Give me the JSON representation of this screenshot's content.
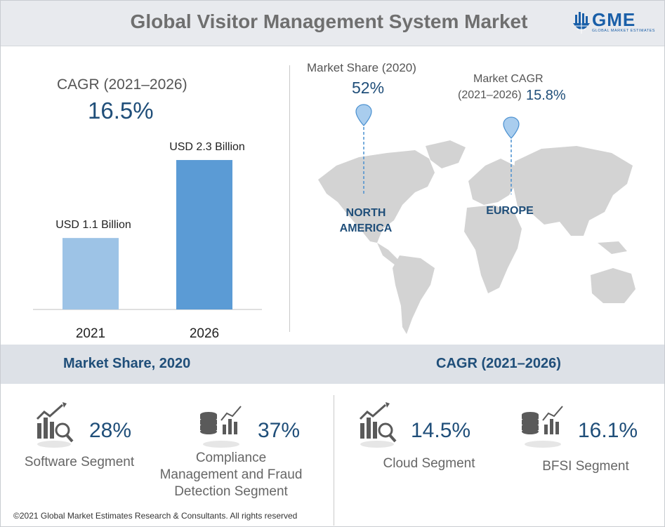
{
  "title": "Global Visitor Management System Market",
  "logo": {
    "text": "GME",
    "subtitle": "GLOBAL MARKET ESTIMATES"
  },
  "cagr": {
    "label": "CAGR (2021–2026)",
    "value": "16.5%"
  },
  "chart_data": {
    "type": "bar",
    "categories": [
      "2021",
      "2026"
    ],
    "values": [
      1.1,
      2.3
    ],
    "value_labels": [
      "USD 1.1 Billion",
      "USD 2.3 Billion"
    ],
    "ylim": [
      0,
      2.7
    ],
    "colors": [
      "#9dc3e6",
      "#5b9bd5"
    ],
    "grid": false
  },
  "map": {
    "market_share_label": "Market Share (2020)",
    "market_share_value": "52%",
    "market_cagr_label": "Market CAGR",
    "market_cagr_period": "(2021–2026)",
    "market_cagr_value": "15.8%",
    "north_america": [
      "NORTH",
      "AMERICA"
    ],
    "europe": "EUROPE"
  },
  "band": {
    "left": "Market Share, 2020",
    "right": "CAGR (2021–2026)"
  },
  "segments": [
    {
      "value": "28%",
      "label": [
        "Software Segment"
      ],
      "icon": "chart-magnifier-icon"
    },
    {
      "value": "37%",
      "label": [
        "Compliance",
        "Management and Fraud",
        "Detection Segment"
      ],
      "icon": "database-chart-icon"
    },
    {
      "value": "14.5%",
      "label": [
        "Cloud Segment"
      ],
      "icon": "chart-magnifier-icon"
    },
    {
      "value": "16.1%",
      "label": [
        "BFSI Segment"
      ],
      "icon": "database-chart-icon"
    }
  ],
  "footer": "©2021 Global Market Estimates Research & Consultants. All rights reserved",
  "colors": {
    "accent": "#1f4e79",
    "map": "#d3d3d3",
    "pin": "#a9cdee"
  }
}
